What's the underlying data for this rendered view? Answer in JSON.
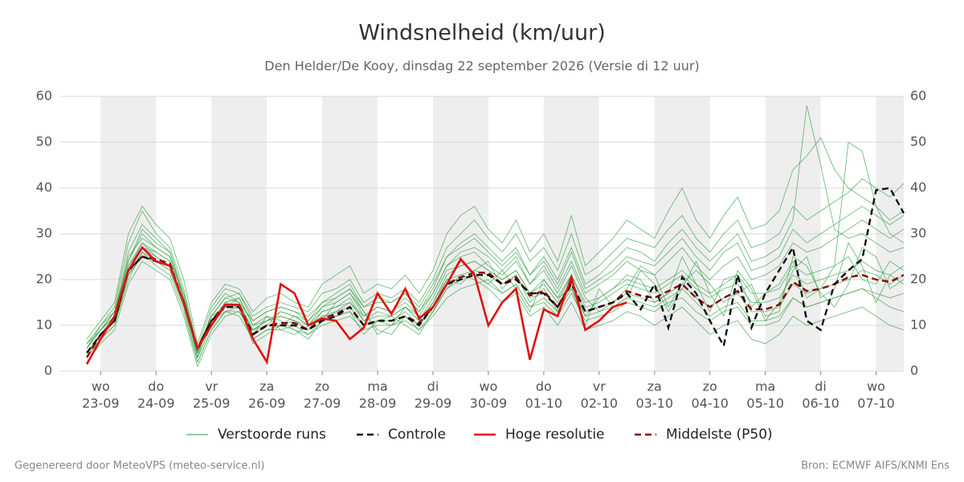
{
  "chart_data": {
    "type": "line",
    "title": "Windsnelheid (km/uur)",
    "subtitle": "Den Helder/De Kooy, dinsdag 22 september 2026 (Versie di 12 uur)",
    "footer_left": "Gegenereerd door MeteoVPS (meteo-service.nl)",
    "footer_right": "Bron: ECMWF AIFS/KNMI Ens",
    "xlim": [
      -0.73,
      14.5
    ],
    "ylim": [
      0,
      60
    ],
    "yticks": [
      0,
      10,
      20,
      30,
      40,
      50,
      60
    ],
    "grid": true,
    "shade_alternate_days": true,
    "xticks": [
      {
        "value": 0,
        "label": "23-09",
        "day": "wo"
      },
      {
        "value": 1,
        "label": "24-09",
        "day": "do"
      },
      {
        "value": 2,
        "label": "25-09",
        "day": "vr"
      },
      {
        "value": 3,
        "label": "26-09",
        "day": "za"
      },
      {
        "value": 4,
        "label": "27-09",
        "day": "zo"
      },
      {
        "value": 5,
        "label": "28-09",
        "day": "ma"
      },
      {
        "value": 6,
        "label": "29-09",
        "day": "di"
      },
      {
        "value": 7,
        "label": "30-09",
        "day": "wo"
      },
      {
        "value": 8,
        "label": "01-10",
        "day": "do"
      },
      {
        "value": 9,
        "label": "02-10",
        "day": "vr"
      },
      {
        "value": 10,
        "label": "03-10",
        "day": "za"
      },
      {
        "value": 11,
        "label": "04-10",
        "day": "zo"
      },
      {
        "value": 12,
        "label": "05-10",
        "day": "ma"
      },
      {
        "value": 13,
        "label": "06-10",
        "day": "di"
      },
      {
        "value": 14,
        "label": "07-10",
        "day": "wo"
      }
    ],
    "x": [
      -0.25,
      0,
      0.25,
      0.5,
      0.75,
      1,
      1.25,
      1.5,
      1.75,
      2,
      2.25,
      2.5,
      2.75,
      3,
      3.25,
      3.5,
      3.75,
      4,
      4.25,
      4.5,
      4.75,
      5,
      5.25,
      5.5,
      5.75,
      6,
      6.25,
      6.5,
      6.75,
      7,
      7.25,
      7.5,
      7.75,
      8,
      8.25,
      8.5,
      8.75,
      9,
      9.25,
      9.5,
      9.75,
      10,
      10.25,
      10.5,
      10.75,
      11,
      11.25,
      11.5,
      11.75,
      12,
      12.25,
      12.5,
      12.75,
      13,
      13.25,
      13.5,
      13.75,
      14,
      14.25,
      14.5
    ],
    "series": [
      {
        "name": "Verstoorde runs",
        "color": "#2e9e3e",
        "members": [
          [
            5,
            9,
            12,
            24,
            30,
            27,
            25,
            16,
            4,
            12,
            16,
            15,
            9,
            11,
            12,
            11,
            9,
            13,
            14,
            16,
            11,
            12,
            12,
            14,
            11,
            16,
            22,
            23,
            24,
            22,
            20,
            22,
            17,
            19,
            15,
            21,
            14,
            15,
            17,
            19,
            18,
            17,
            19,
            21,
            18,
            16,
            18,
            19,
            15,
            15,
            16,
            21,
            19,
            20,
            21,
            22,
            24,
            22,
            21,
            23
          ],
          [
            3,
            7,
            10,
            20,
            26,
            24,
            22,
            14,
            2,
            9,
            13,
            14,
            7,
            9,
            9,
            10,
            8,
            10,
            11,
            12,
            9,
            10,
            10,
            11,
            9,
            12,
            16,
            18,
            19,
            20,
            17,
            19,
            14,
            15,
            12,
            17,
            11,
            12,
            13,
            15,
            14,
            13,
            15,
            16,
            13,
            11,
            13,
            14,
            10,
            10,
            11,
            16,
            14,
            15,
            16,
            17,
            18,
            17,
            16,
            17
          ],
          [
            6,
            10,
            14,
            28,
            35,
            30,
            27,
            18,
            5,
            14,
            18,
            17,
            12,
            14,
            15,
            14,
            13,
            17,
            18,
            20,
            15,
            17,
            16,
            18,
            15,
            20,
            27,
            30,
            33,
            29,
            26,
            30,
            24,
            27,
            22,
            30,
            21,
            23,
            26,
            29,
            28,
            27,
            31,
            34,
            29,
            26,
            30,
            33,
            27,
            28,
            30,
            36,
            33,
            35,
            37,
            39,
            42,
            40,
            38,
            41
          ],
          [
            4,
            8,
            11,
            22,
            28,
            25,
            23,
            15,
            3,
            10,
            15,
            14,
            6,
            8,
            10,
            12,
            11,
            14,
            16,
            18,
            13,
            9,
            8,
            12,
            10,
            15,
            20,
            19,
            22,
            24,
            18,
            21,
            15,
            18,
            13,
            19,
            12,
            16,
            18,
            21,
            20,
            15,
            17,
            25,
            19,
            13,
            20,
            21,
            14,
            17,
            19,
            24,
            16,
            18,
            23,
            25,
            20,
            19,
            24,
            22
          ],
          [
            5,
            9,
            13,
            23,
            27,
            26,
            24,
            17,
            5,
            12,
            14,
            16,
            10,
            12,
            11,
            9,
            7,
            11,
            13,
            15,
            12,
            14,
            13,
            15,
            12,
            17,
            23,
            25,
            26,
            23,
            21,
            24,
            19,
            22,
            17,
            23,
            16,
            13,
            15,
            18,
            23,
            21,
            14,
            19,
            22,
            19,
            15,
            17,
            19,
            12,
            13,
            25,
            23,
            17,
            14,
            19,
            27,
            25,
            18,
            20
          ],
          [
            2,
            6,
            9,
            19,
            24,
            22,
            20,
            12,
            1,
            8,
            12,
            13,
            8,
            10,
            13,
            12,
            10,
            12,
            12,
            13,
            8,
            11,
            12,
            10,
            8,
            13,
            18,
            21,
            20,
            18,
            15,
            17,
            12,
            14,
            10,
            15,
            9,
            10,
            11,
            13,
            12,
            10,
            12,
            14,
            11,
            8,
            10,
            11,
            7,
            6,
            8,
            12,
            10,
            11,
            12,
            13,
            14,
            12,
            10,
            9
          ],
          [
            7,
            11,
            15,
            30,
            36,
            32,
            29,
            20,
            6,
            15,
            19,
            18,
            13,
            16,
            17,
            15,
            14,
            19,
            21,
            23,
            17,
            19,
            18,
            21,
            17,
            22,
            30,
            34,
            36,
            31,
            28,
            33,
            26,
            30,
            24,
            34,
            23,
            26,
            29,
            33,
            31,
            29,
            35,
            40,
            33,
            29,
            34,
            38,
            31,
            32,
            35,
            44,
            47,
            51,
            44,
            40,
            38,
            36,
            33,
            35
          ],
          [
            4,
            8,
            12,
            21,
            25,
            24,
            22,
            14,
            4,
            11,
            13,
            13,
            9,
            10,
            10,
            11,
            9,
            12,
            13,
            14,
            10,
            11,
            11,
            13,
            10,
            14,
            20,
            21,
            22,
            21,
            19,
            21,
            16,
            17,
            14,
            20,
            13,
            14,
            15,
            17,
            16,
            15,
            17,
            19,
            16,
            14,
            16,
            17,
            13,
            13,
            14,
            19,
            17,
            18,
            19,
            20,
            22,
            21,
            19,
            21
          ],
          [
            5,
            10,
            13,
            26,
            32,
            29,
            26,
            17,
            3,
            13,
            17,
            15,
            11,
            13,
            14,
            13,
            11,
            15,
            16,
            18,
            14,
            15,
            15,
            17,
            13,
            18,
            25,
            27,
            29,
            26,
            23,
            26,
            21,
            24,
            19,
            26,
            18,
            20,
            22,
            25,
            24,
            23,
            26,
            29,
            25,
            22,
            26,
            28,
            22,
            23,
            25,
            31,
            28,
            30,
            32,
            34,
            36,
            34,
            32,
            34
          ],
          [
            3,
            8,
            11,
            22,
            27,
            25,
            23,
            15,
            3,
            10,
            14,
            14,
            8,
            12,
            9,
            8,
            10,
            11,
            15,
            17,
            13,
            8,
            10,
            14,
            12,
            13,
            19,
            24,
            21,
            19,
            22,
            18,
            13,
            20,
            16,
            18,
            10,
            18,
            14,
            16,
            22,
            19,
            13,
            18,
            24,
            17,
            12,
            22,
            18,
            11,
            15,
            22,
            25,
            16,
            18,
            28,
            23,
            15,
            21,
            19
          ],
          [
            6,
            9,
            12,
            25,
            29,
            27,
            25,
            16,
            4,
            11,
            15,
            16,
            10,
            11,
            13,
            12,
            10,
            14,
            15,
            17,
            12,
            14,
            13,
            16,
            13,
            17,
            23,
            26,
            27,
            25,
            22,
            25,
            19,
            23,
            18,
            24,
            17,
            19,
            21,
            24,
            22,
            21,
            24,
            27,
            23,
            20,
            23,
            25,
            20,
            21,
            23,
            28,
            26,
            27,
            29,
            31,
            33,
            31,
            29,
            31
          ],
          [
            4,
            7,
            10,
            21,
            26,
            23,
            21,
            13,
            2,
            9,
            13,
            12,
            7,
            9,
            10,
            9,
            8,
            11,
            12,
            13,
            10,
            11,
            10,
            12,
            9,
            13,
            18,
            20,
            21,
            19,
            17,
            19,
            14,
            16,
            13,
            18,
            12,
            13,
            14,
            16,
            15,
            14,
            16,
            18,
            15,
            12,
            14,
            15,
            11,
            11,
            12,
            16,
            14,
            15,
            16,
            17,
            18,
            16,
            14,
            13
          ],
          [
            5,
            9,
            13,
            24,
            31,
            28,
            26,
            16,
            5,
            12,
            16,
            17,
            11,
            13,
            14,
            13,
            12,
            15,
            17,
            19,
            14,
            16,
            15,
            17,
            14,
            19,
            25,
            28,
            30,
            27,
            24,
            27,
            21,
            25,
            20,
            27,
            19,
            21,
            24,
            27,
            26,
            24,
            28,
            31,
            27,
            24,
            27,
            30,
            24,
            25,
            27,
            33,
            58,
            45,
            31,
            29,
            30,
            28,
            26,
            27
          ],
          [
            4,
            8,
            11,
            23,
            28,
            26,
            24,
            15,
            4,
            11,
            14,
            14,
            9,
            11,
            12,
            11,
            10,
            13,
            14,
            15,
            11,
            13,
            12,
            14,
            11,
            15,
            21,
            23,
            24,
            22,
            20,
            22,
            17,
            20,
            16,
            21,
            15,
            16,
            18,
            20,
            19,
            18,
            20,
            22,
            19,
            17,
            19,
            21,
            17,
            17,
            18,
            23,
            21,
            22,
            23,
            50,
            48,
            36,
            30,
            28
          ]
        ]
      },
      {
        "name": "Controle",
        "color": "#111111",
        "dash": true,
        "values": [
          4,
          8,
          11,
          22,
          25,
          24,
          23,
          15,
          5,
          11,
          14,
          14,
          8,
          10,
          10,
          10,
          9,
          11,
          12,
          14,
          10,
          11,
          11,
          12,
          10,
          14,
          19,
          20,
          21,
          21,
          19,
          20,
          17,
          17,
          14,
          19,
          13,
          14,
          15,
          17,
          13.5,
          19,
          9.5,
          20.5,
          17,
          11,
          5.5,
          21,
          9.5,
          17,
          22,
          27,
          11,
          9,
          19,
          22,
          24.5,
          39.5,
          40,
          34.5
        ]
      },
      {
        "name": "Hoge resolutie",
        "color": "#e01010",
        "values": [
          1.5,
          7,
          12,
          22,
          27,
          24,
          23,
          15,
          5,
          10,
          14.5,
          14.5,
          7,
          2,
          19,
          17,
          10,
          11.5,
          11,
          7,
          9.5,
          17,
          12.5,
          18,
          11.5,
          14,
          19,
          24.5,
          21,
          10,
          15,
          18,
          2.5,
          13.5,
          12,
          20.5,
          9,
          11,
          14,
          15,
          null,
          null,
          null,
          null,
          null,
          null,
          null,
          null,
          null,
          null,
          null,
          null,
          null,
          null,
          null,
          null,
          null,
          null,
          null,
          null
        ]
      },
      {
        "name": "Middelste (P50)",
        "color": "#8b0000",
        "dash": true,
        "values": [
          3,
          8,
          11,
          22,
          25,
          24.5,
          23.5,
          15,
          5,
          11,
          14.5,
          14.5,
          8,
          10,
          10.5,
          10.5,
          9,
          11.5,
          12.5,
          14,
          10,
          11,
          11,
          12,
          10.5,
          14,
          19,
          20.5,
          21.5,
          21.5,
          19,
          20.5,
          16.5,
          17.5,
          14,
          19.5,
          13,
          14,
          15,
          17.5,
          16.5,
          16,
          17.5,
          19,
          16,
          14,
          16,
          17.5,
          13.5,
          13.5,
          14.5,
          19.5,
          17.5,
          18,
          19,
          20.5,
          21,
          20,
          19.5,
          21
        ]
      }
    ]
  }
}
